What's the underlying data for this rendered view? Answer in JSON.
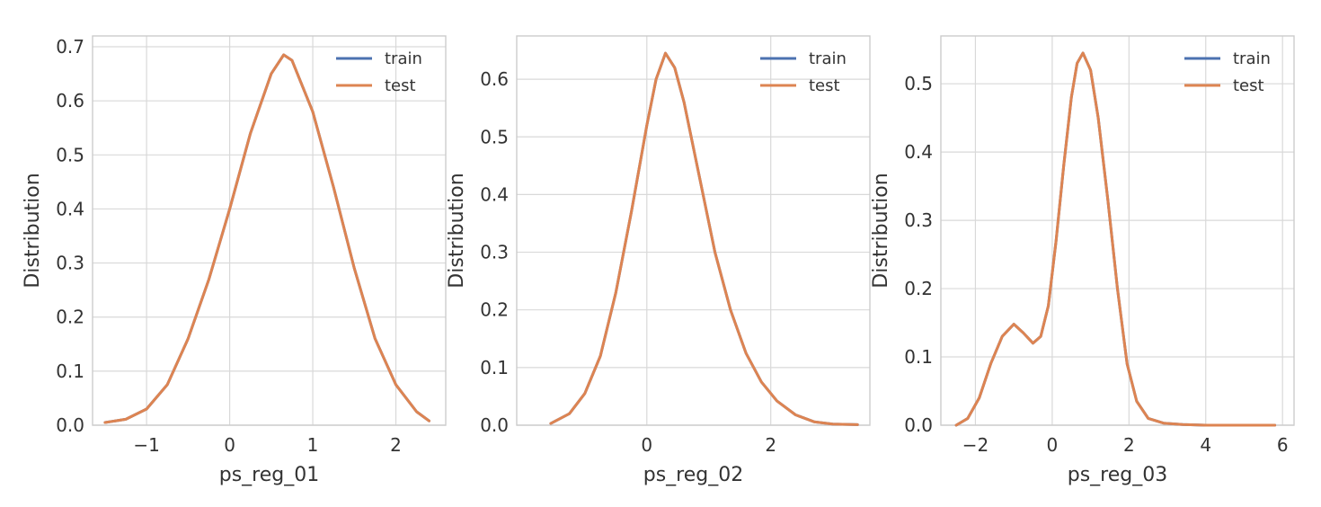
{
  "chart_data": [
    {
      "type": "line",
      "xlabel": "ps_reg_01",
      "ylabel": "Distribution",
      "xlim": [
        -1.65,
        2.6
      ],
      "ylim": [
        0,
        0.72
      ],
      "xticks": [
        -1,
        0,
        1,
        2
      ],
      "yticks": [
        0.0,
        0.1,
        0.2,
        0.3,
        0.4,
        0.5,
        0.6,
        0.7
      ],
      "grid": true,
      "legend": "top-right",
      "series": [
        {
          "name": "train",
          "color": "#4c72b0",
          "x": [
            -1.5,
            -1.25,
            -1.0,
            -0.75,
            -0.5,
            -0.25,
            0.0,
            0.25,
            0.5,
            0.65,
            0.75,
            1.0,
            1.25,
            1.5,
            1.75,
            2.0,
            2.25,
            2.4
          ],
          "y": [
            0.005,
            0.011,
            0.03,
            0.075,
            0.16,
            0.27,
            0.4,
            0.54,
            0.65,
            0.685,
            0.675,
            0.58,
            0.44,
            0.29,
            0.16,
            0.075,
            0.025,
            0.008
          ]
        },
        {
          "name": "test",
          "color": "#dd8452",
          "x": [
            -1.5,
            -1.25,
            -1.0,
            -0.75,
            -0.5,
            -0.25,
            0.0,
            0.25,
            0.5,
            0.65,
            0.75,
            1.0,
            1.25,
            1.5,
            1.75,
            2.0,
            2.25,
            2.4
          ],
          "y": [
            0.005,
            0.011,
            0.03,
            0.075,
            0.16,
            0.27,
            0.4,
            0.54,
            0.65,
            0.685,
            0.675,
            0.58,
            0.44,
            0.29,
            0.16,
            0.075,
            0.025,
            0.008
          ]
        }
      ]
    },
    {
      "type": "line",
      "xlabel": "ps_reg_02",
      "ylabel": "Distribution",
      "xlim": [
        -2.1,
        3.6
      ],
      "ylim": [
        0,
        0.675
      ],
      "xticks": [
        0,
        2
      ],
      "yticks": [
        0.0,
        0.1,
        0.2,
        0.3,
        0.4,
        0.5,
        0.6
      ],
      "grid": true,
      "legend": "top-right",
      "series": [
        {
          "name": "train",
          "color": "#4c72b0",
          "x": [
            -1.55,
            -1.25,
            -1.0,
            -0.75,
            -0.5,
            -0.25,
            0.0,
            0.15,
            0.3,
            0.45,
            0.6,
            0.85,
            1.1,
            1.35,
            1.6,
            1.85,
            2.1,
            2.4,
            2.7,
            3.0,
            3.4
          ],
          "y": [
            0.003,
            0.02,
            0.055,
            0.12,
            0.23,
            0.37,
            0.52,
            0.6,
            0.645,
            0.62,
            0.56,
            0.43,
            0.3,
            0.2,
            0.125,
            0.075,
            0.042,
            0.018,
            0.006,
            0.002,
            0.001
          ]
        },
        {
          "name": "test",
          "color": "#dd8452",
          "x": [
            -1.55,
            -1.25,
            -1.0,
            -0.75,
            -0.5,
            -0.25,
            0.0,
            0.15,
            0.3,
            0.45,
            0.6,
            0.85,
            1.1,
            1.35,
            1.6,
            1.85,
            2.1,
            2.4,
            2.7,
            3.0,
            3.4
          ],
          "y": [
            0.003,
            0.02,
            0.055,
            0.12,
            0.23,
            0.37,
            0.52,
            0.6,
            0.645,
            0.62,
            0.56,
            0.43,
            0.3,
            0.2,
            0.125,
            0.075,
            0.042,
            0.018,
            0.006,
            0.002,
            0.001
          ]
        }
      ]
    },
    {
      "type": "line",
      "xlabel": "ps_reg_03",
      "ylabel": "Distribution",
      "xlim": [
        -2.9,
        6.3
      ],
      "ylim": [
        0,
        0.57
      ],
      "xticks": [
        -2,
        0,
        2,
        4,
        6
      ],
      "yticks": [
        0.0,
        0.1,
        0.2,
        0.3,
        0.4,
        0.5
      ],
      "grid": true,
      "legend": "top-right",
      "series": [
        {
          "name": "train",
          "color": "#4c72b0",
          "x": [
            -2.5,
            -2.2,
            -1.9,
            -1.6,
            -1.3,
            -1.0,
            -0.75,
            -0.5,
            -0.3,
            -0.1,
            0.1,
            0.3,
            0.5,
            0.65,
            0.8,
            1.0,
            1.2,
            1.45,
            1.7,
            1.95,
            2.2,
            2.5,
            2.9,
            3.4,
            4.0,
            5.0,
            5.8
          ],
          "y": [
            0.0,
            0.01,
            0.04,
            0.09,
            0.13,
            0.148,
            0.135,
            0.12,
            0.13,
            0.175,
            0.27,
            0.38,
            0.48,
            0.53,
            0.545,
            0.52,
            0.45,
            0.33,
            0.2,
            0.09,
            0.035,
            0.01,
            0.003,
            0.001,
            0.0,
            0.0,
            0.0
          ]
        },
        {
          "name": "test",
          "color": "#dd8452",
          "x": [
            -2.5,
            -2.2,
            -1.9,
            -1.6,
            -1.3,
            -1.0,
            -0.75,
            -0.5,
            -0.3,
            -0.1,
            0.1,
            0.3,
            0.5,
            0.65,
            0.8,
            1.0,
            1.2,
            1.45,
            1.7,
            1.95,
            2.2,
            2.5,
            2.9,
            3.4,
            4.0,
            5.0,
            5.8
          ],
          "y": [
            0.0,
            0.01,
            0.04,
            0.09,
            0.13,
            0.148,
            0.135,
            0.12,
            0.13,
            0.175,
            0.27,
            0.38,
            0.48,
            0.53,
            0.545,
            0.52,
            0.45,
            0.33,
            0.2,
            0.09,
            0.035,
            0.01,
            0.003,
            0.001,
            0.0,
            0.0,
            0.0
          ]
        }
      ]
    }
  ]
}
